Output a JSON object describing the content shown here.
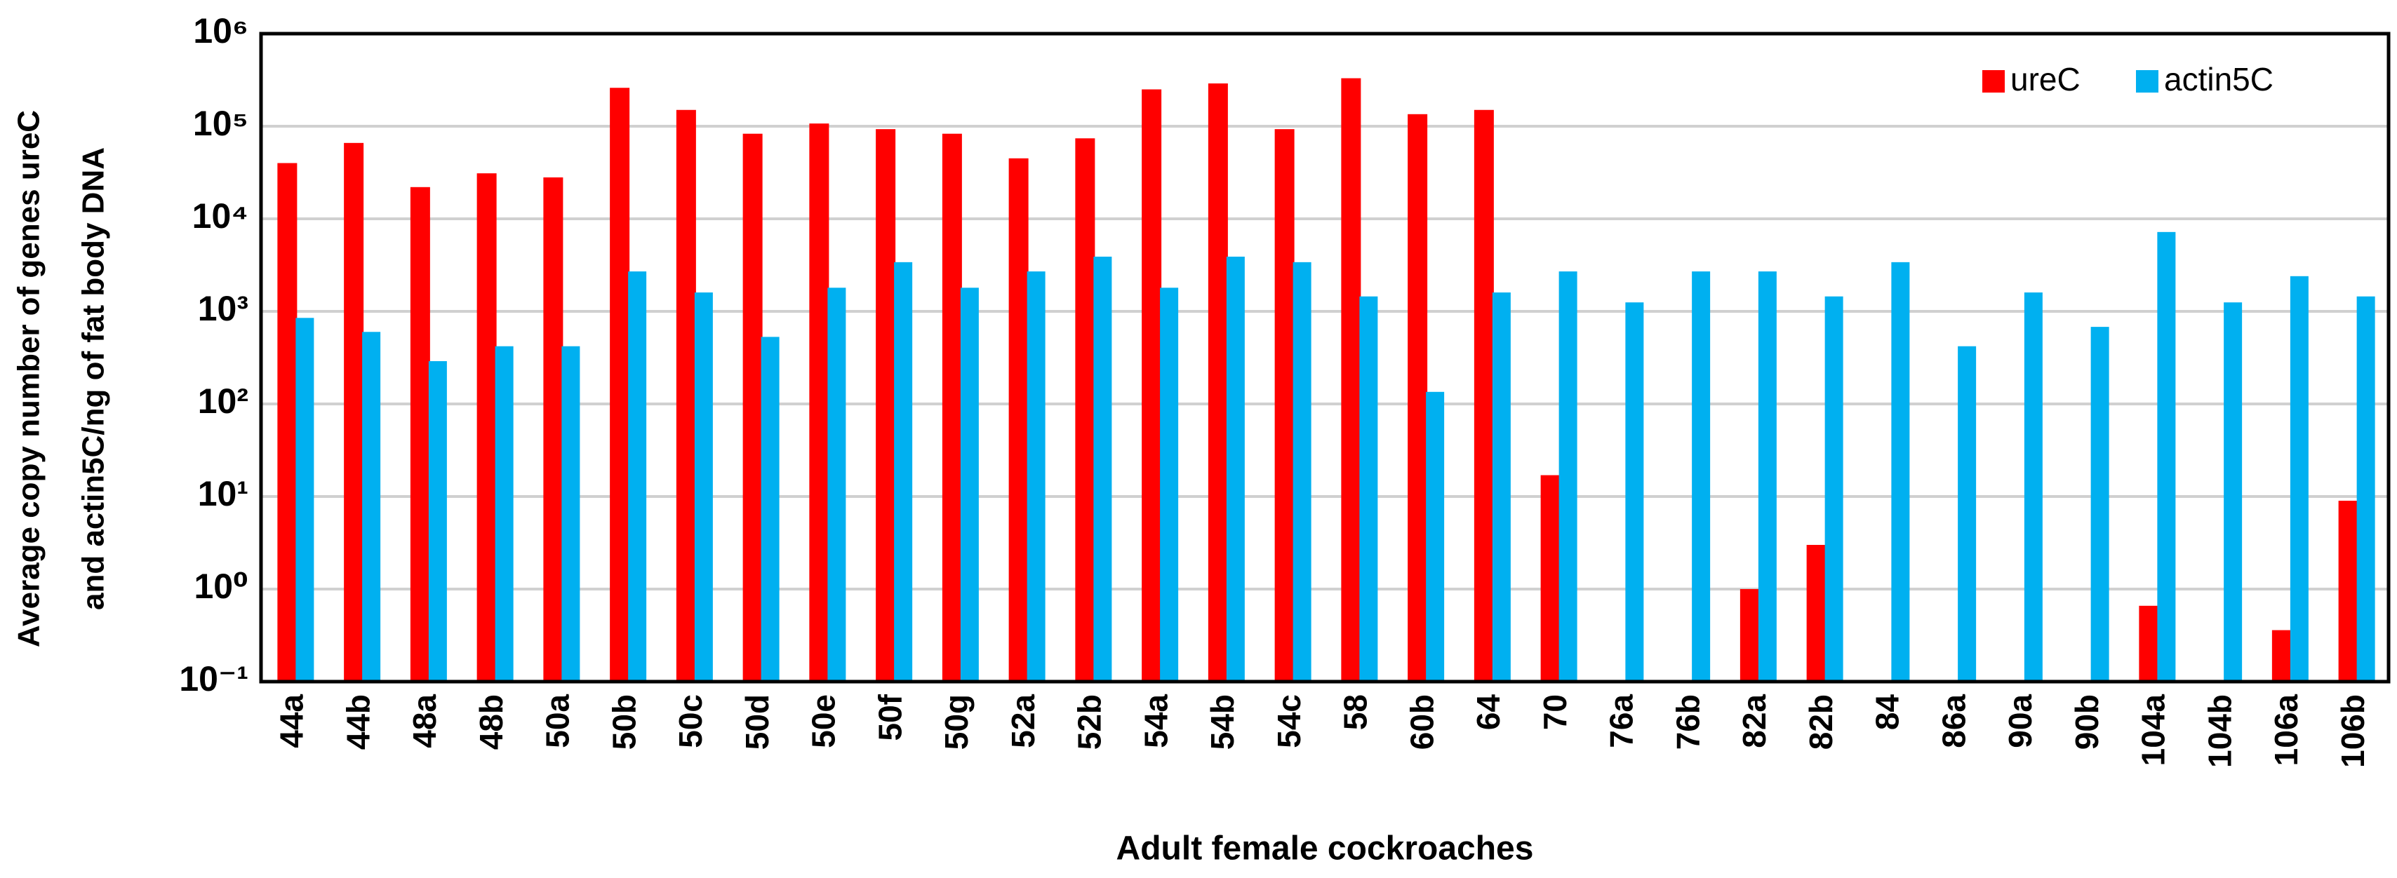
{
  "chart_data": {
    "type": "bar",
    "y_label": [
      "Average copy number of genes ureC",
      "and actin5C/ng of fat body DNA"
    ],
    "x_label": "Adult female cockroaches",
    "categories": [
      "44a",
      "44b",
      "48a",
      "48b",
      "50a",
      "50b",
      "50c",
      "50d",
      "50e",
      "50f",
      "50g",
      "52a",
      "52b",
      "54a",
      "54b",
      "54c",
      "58",
      "60b",
      "64",
      "70",
      "76a",
      "76b",
      "82a",
      "82b",
      "84",
      "86a",
      "90a",
      "90b",
      "104a",
      "104b",
      "106a",
      "106b"
    ],
    "series": [
      {
        "name": "ureC",
        "color": "#ff0000",
        "values": [
          40000,
          66000,
          22000,
          31000,
          28000,
          260000,
          150000,
          83000,
          107000,
          93000,
          83000,
          45000,
          74000,
          250000,
          290000,
          93000,
          330000,
          135000,
          150000,
          17,
          null,
          null,
          1,
          3,
          null,
          null,
          null,
          null,
          0.66,
          null,
          0.36,
          9
        ]
      },
      {
        "name": "actin5C",
        "color": "#00b0f0",
        "values": [
          850,
          600,
          290,
          420,
          420,
          2700,
          1600,
          530,
          1800,
          3400,
          1800,
          2700,
          3900,
          1800,
          3900,
          3400,
          1450,
          135,
          1600,
          2700,
          1250,
          2700,
          2700,
          1450,
          3400,
          420,
          1600,
          680,
          7200,
          1250,
          2400,
          1450
        ]
      }
    ],
    "log_scale": true,
    "ylim": [
      0.1,
      1000000
    ],
    "yticks": [
      {
        "value": 0.1,
        "label": "10⁻¹"
      },
      {
        "value": 1,
        "label": "10⁰"
      },
      {
        "value": 10,
        "label": "10¹"
      },
      {
        "value": 100,
        "label": "10²"
      },
      {
        "value": 1000,
        "label": "10³"
      },
      {
        "value": 10000,
        "label": "10⁴"
      },
      {
        "value": 100000,
        "label": "10⁵"
      },
      {
        "value": 1000000,
        "label": "10⁶"
      }
    ],
    "grid": true,
    "legend": "upper-right"
  }
}
